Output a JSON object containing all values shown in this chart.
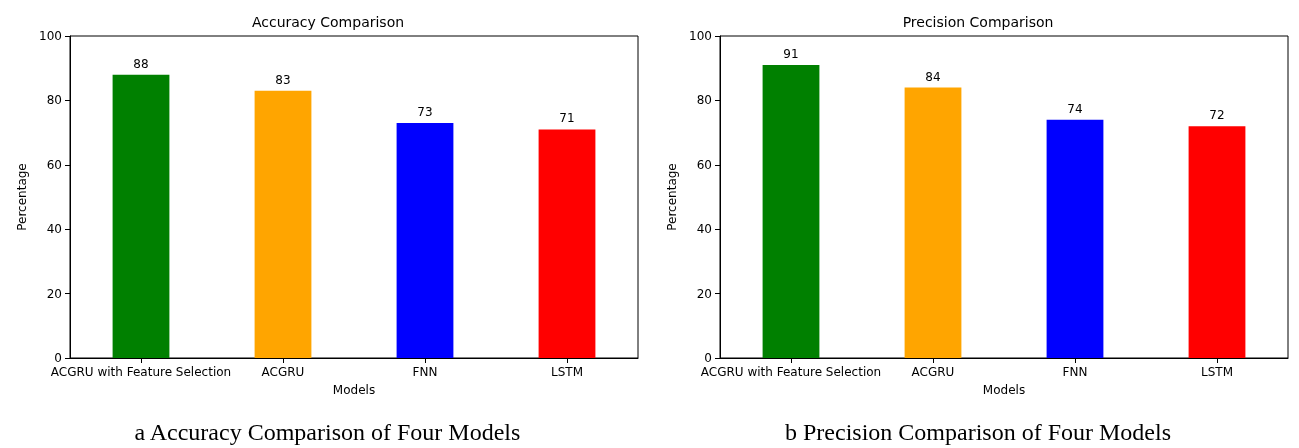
{
  "chart_data": [
    {
      "type": "bar",
      "title": "Accuracy Comparison",
      "xlabel": "Models",
      "ylabel": "Percentage",
      "categories": [
        "ACGRU with Feature Selection",
        "ACGRU",
        "FNN",
        "LSTM"
      ],
      "values": [
        88,
        83,
        73,
        71
      ],
      "colors": [
        "#008000",
        "#ffa500",
        "#0000ff",
        "#ff0000"
      ],
      "ylim": [
        0,
        100
      ],
      "yticks": [
        0,
        20,
        40,
        60,
        80,
        100
      ],
      "data_labels": true,
      "grid": false,
      "annotations": [
        "a Accuracy Comparison of Four Models"
      ]
    },
    {
      "type": "bar",
      "title": "Precision Comparison",
      "xlabel": "Models",
      "ylabel": "Percentage",
      "categories": [
        "ACGRU with Feature Selection",
        "ACGRU",
        "FNN",
        "LSTM"
      ],
      "values": [
        91,
        84,
        74,
        72
      ],
      "colors": [
        "#008000",
        "#ffa500",
        "#0000ff",
        "#ff0000"
      ],
      "ylim": [
        0,
        100
      ],
      "yticks": [
        0,
        20,
        40,
        60,
        80,
        100
      ],
      "data_labels": true,
      "grid": false,
      "annotations": [
        "b Precision Comparison of Four Models"
      ]
    }
  ]
}
